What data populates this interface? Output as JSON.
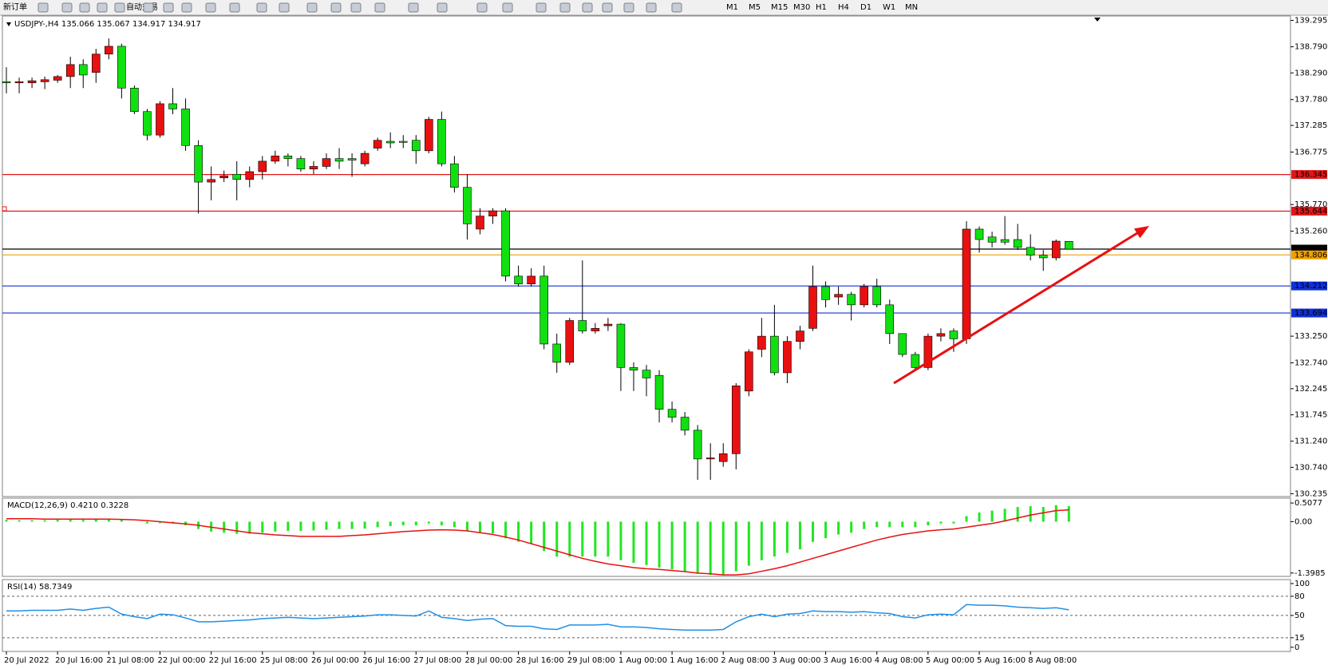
{
  "toolbar": {
    "new_order": "新订单",
    "auto_trading": "自动交易",
    "periods": [
      "M1",
      "M5",
      "M15",
      "M30",
      "H1",
      "H4",
      "D1",
      "W1",
      "MN"
    ]
  },
  "chart_data": [
    {
      "type": "candlestick",
      "title": "USDJPY-,H4 135.066 135.067 134.917 134.917",
      "x": [
        "20 Jul 2022",
        null,
        null,
        null,
        "20 Jul 16:00",
        null,
        null,
        null,
        "21 Jul 08:00",
        null,
        null,
        null,
        "22 Jul 00:00",
        null,
        null,
        null,
        "22 Jul 16:00",
        null,
        null,
        null,
        "25 Jul 08:00",
        null,
        null,
        null,
        "26 Jul 00:00",
        null,
        null,
        null,
        "26 Jul 16:00",
        null,
        null,
        null,
        "27 Jul 08:00",
        null,
        null,
        null,
        "28 Jul 00:00",
        null,
        null,
        null,
        "28 Jul 16:00",
        null,
        null,
        null,
        "29 Jul 08:00",
        null,
        null,
        null,
        "1 Aug 00:00",
        null,
        null,
        null,
        "1 Aug 16:00",
        null,
        null,
        null,
        "2 Aug 08:00",
        null,
        null,
        null,
        "3 Aug 00:00",
        null,
        null,
        null,
        "3 Aug 16:00",
        null,
        null,
        null,
        "4 Aug 08:00",
        null,
        null,
        null,
        "5 Aug 00:00",
        null,
        null,
        null,
        "5 Aug 16:00",
        null,
        null,
        null,
        "8 Aug 08:00",
        null,
        null,
        null
      ],
      "open": [
        138.12,
        138.1,
        138.1,
        138.12,
        138.15,
        138.22,
        138.45,
        138.3,
        138.65,
        138.8,
        138.0,
        137.55,
        137.1,
        137.7,
        137.6,
        136.9,
        136.2,
        136.28,
        136.35,
        136.25,
        136.4,
        136.6,
        136.7,
        136.65,
        136.45,
        136.5,
        136.65,
        136.65,
        136.55,
        136.85,
        136.98,
        136.98,
        137.0,
        136.8,
        137.4,
        136.55,
        136.1,
        135.3,
        135.55,
        135.65,
        134.4,
        134.25,
        134.4,
        133.1,
        132.75,
        133.55,
        133.35,
        133.45,
        133.48,
        132.65,
        132.6,
        132.5,
        131.85,
        131.7,
        131.45,
        130.9,
        130.85,
        131.0,
        132.2,
        133.0,
        133.25,
        132.55,
        133.15,
        133.4,
        134.2,
        134.0,
        134.05,
        133.85,
        134.2,
        133.85,
        133.3,
        132.9,
        132.65,
        133.25,
        133.35,
        133.2,
        135.3,
        135.15,
        135.1,
        135.1,
        134.95,
        134.8,
        134.75,
        135.066
      ],
      "high": [
        138.4,
        138.2,
        138.2,
        138.22,
        138.25,
        138.6,
        138.55,
        138.75,
        138.95,
        138.85,
        138.05,
        137.6,
        137.75,
        138.0,
        137.8,
        137.0,
        136.5,
        136.42,
        136.6,
        136.5,
        136.7,
        136.8,
        136.75,
        136.7,
        136.6,
        136.75,
        136.85,
        136.75,
        136.8,
        137.05,
        137.15,
        137.1,
        137.1,
        137.45,
        137.55,
        136.7,
        136.35,
        135.7,
        135.7,
        135.7,
        134.6,
        134.55,
        134.6,
        133.3,
        133.6,
        134.7,
        133.5,
        133.6,
        133.5,
        132.75,
        132.7,
        132.6,
        132.0,
        131.8,
        131.55,
        131.2,
        131.2,
        132.35,
        133.0,
        133.6,
        133.85,
        133.25,
        133.45,
        134.6,
        134.3,
        134.2,
        134.1,
        134.25,
        134.35,
        133.95,
        133.3,
        132.95,
        133.3,
        133.4,
        133.4,
        135.45,
        135.35,
        135.25,
        135.55,
        135.4,
        135.2,
        134.9,
        135.1,
        135.067
      ],
      "low": [
        137.9,
        137.9,
        138.0,
        137.98,
        138.1,
        138.0,
        138.0,
        138.1,
        138.55,
        137.8,
        137.5,
        137.0,
        137.05,
        137.5,
        136.8,
        135.6,
        135.85,
        136.2,
        135.85,
        136.1,
        136.25,
        136.55,
        136.5,
        136.4,
        136.35,
        136.45,
        136.45,
        136.3,
        136.5,
        136.8,
        136.85,
        136.85,
        136.55,
        136.75,
        136.5,
        136.0,
        135.1,
        135.2,
        135.4,
        134.3,
        134.2,
        134.2,
        133.0,
        132.55,
        132.7,
        133.3,
        133.3,
        133.35,
        132.2,
        132.2,
        132.1,
        131.6,
        131.6,
        131.35,
        130.5,
        130.5,
        130.75,
        130.7,
        132.1,
        132.85,
        132.5,
        132.35,
        133.0,
        133.35,
        133.8,
        133.85,
        133.55,
        133.8,
        133.8,
        133.1,
        132.85,
        132.6,
        132.6,
        133.15,
        132.95,
        133.1,
        134.85,
        134.95,
        135.0,
        134.9,
        134.7,
        134.5,
        134.7,
        134.917
      ],
      "close": [
        138.1,
        138.12,
        138.14,
        138.16,
        138.22,
        138.45,
        138.25,
        138.65,
        138.8,
        138.0,
        137.55,
        137.1,
        137.7,
        137.6,
        136.9,
        136.2,
        136.25,
        136.32,
        136.25,
        136.4,
        136.6,
        136.7,
        136.65,
        136.45,
        136.5,
        136.65,
        136.6,
        136.62,
        136.75,
        137.0,
        136.95,
        136.96,
        136.8,
        137.4,
        136.55,
        136.1,
        135.4,
        135.55,
        135.65,
        134.4,
        134.25,
        134.4,
        133.1,
        132.75,
        133.55,
        133.35,
        133.4,
        133.48,
        132.65,
        132.6,
        132.45,
        131.85,
        131.7,
        131.45,
        130.9,
        130.92,
        131.0,
        132.3,
        132.95,
        133.25,
        132.55,
        133.15,
        133.35,
        134.2,
        133.95,
        134.05,
        133.85,
        134.2,
        133.85,
        133.3,
        132.9,
        132.65,
        133.25,
        133.3,
        133.2,
        135.3,
        135.1,
        135.05,
        135.05,
        134.95,
        134.8,
        134.75,
        135.07,
        134.917
      ],
      "up_color": "#e81010",
      "down_color": "#10e010",
      "ylim": [
        130.18,
        139.38
      ],
      "yticks": [
        139.295,
        {
          "value": 138.79,
          "label": "138.790"
        },
        {
          "value": 138.29,
          "label": "138.290"
        },
        {
          "value": 137.78,
          "label": "137.780"
        },
        137.285,
        136.775,
        {
          "value": 135.77,
          "label": "135.770"
        },
        {
          "value": 135.26,
          "label": "135.260"
        },
        {
          "value": 133.25,
          "label": "133.250"
        },
        {
          "value": 132.74,
          "label": "132.740"
        },
        132.245,
        131.745,
        {
          "value": 131.24,
          "label": "131.240"
        },
        {
          "value": 130.74,
          "label": "130.740"
        },
        130.235
      ],
      "levels": [
        {
          "value": 136.345,
          "color": "#e01818"
        },
        {
          "value": 135.644,
          "color": "#e01818"
        },
        {
          "value": 134.917,
          "color": "#000000"
        },
        {
          "value": 134.806,
          "color": "#f0a000"
        },
        {
          "value": 134.212,
          "color": "#1030d8"
        },
        {
          "value": 133.694,
          "color": "#1030d8"
        }
      ]
    },
    {
      "type": "macd",
      "title": "MACD(12,26,9) 0.4210 0.3228",
      "values": [
        0.05,
        0.04,
        0.04,
        0.04,
        0.05,
        0.06,
        0.05,
        0.06,
        0.07,
        0.05,
        0.0,
        -0.05,
        -0.04,
        -0.05,
        -0.1,
        -0.2,
        -0.27,
        -0.3,
        -0.33,
        -0.33,
        -0.3,
        -0.27,
        -0.25,
        -0.25,
        -0.24,
        -0.22,
        -0.2,
        -0.2,
        -0.19,
        -0.15,
        -0.12,
        -0.1,
        -0.1,
        -0.05,
        -0.1,
        -0.15,
        -0.25,
        -0.3,
        -0.32,
        -0.45,
        -0.55,
        -0.6,
        -0.8,
        -0.95,
        -0.95,
        -0.95,
        -0.95,
        -0.95,
        -1.05,
        -1.12,
        -1.18,
        -1.25,
        -1.3,
        -1.35,
        -1.42,
        -1.45,
        -1.45,
        -1.35,
        -1.2,
        -1.05,
        -0.95,
        -0.85,
        -0.75,
        -0.55,
        -0.45,
        -0.35,
        -0.3,
        -0.2,
        -0.15,
        -0.15,
        -0.15,
        -0.15,
        -0.1,
        -0.05,
        -0.05,
        0.15,
        0.25,
        0.3,
        0.35,
        0.4,
        0.42,
        0.4,
        0.45,
        0.421
      ],
      "color": "#22e622",
      "signal": [
        0.08,
        0.08,
        0.08,
        0.07,
        0.07,
        0.07,
        0.07,
        0.07,
        0.07,
        0.06,
        0.05,
        0.03,
        0.0,
        -0.03,
        -0.06,
        -0.1,
        -0.15,
        -0.2,
        -0.25,
        -0.3,
        -0.33,
        -0.36,
        -0.38,
        -0.4,
        -0.4,
        -0.4,
        -0.4,
        -0.38,
        -0.36,
        -0.33,
        -0.3,
        -0.27,
        -0.25,
        -0.23,
        -0.22,
        -0.23,
        -0.25,
        -0.3,
        -0.35,
        -0.42,
        -0.5,
        -0.6,
        -0.7,
        -0.8,
        -0.9,
        -1.0,
        -1.08,
        -1.15,
        -1.2,
        -1.25,
        -1.28,
        -1.3,
        -1.33,
        -1.36,
        -1.4,
        -1.42,
        -1.45,
        -1.45,
        -1.42,
        -1.35,
        -1.28,
        -1.2,
        -1.1,
        -1.0,
        -0.9,
        -0.8,
        -0.7,
        -0.6,
        -0.5,
        -0.42,
        -0.35,
        -0.3,
        -0.25,
        -0.22,
        -0.2,
        -0.15,
        -0.1,
        -0.05,
        0.02,
        0.1,
        0.18,
        0.24,
        0.3,
        0.3228
      ],
      "signal_color": "#e81010",
      "ylim": [
        -1.49,
        0.64
      ],
      "yticks": [
        0.5077,
        {
          "value": 0,
          "label": "0.00"
        },
        -1.3985
      ]
    },
    {
      "type": "line",
      "title": "RSI(14) 58.7349",
      "values": [
        57,
        57,
        58,
        58,
        58,
        60,
        58,
        61,
        63,
        52,
        48,
        45,
        52,
        51,
        46,
        40,
        40,
        41,
        42,
        43,
        45,
        46,
        47,
        46,
        45,
        46,
        47,
        48,
        49,
        51,
        51,
        50,
        49,
        57,
        47,
        45,
        42,
        44,
        45,
        34,
        33,
        33,
        29,
        28,
        35,
        35,
        35,
        36,
        32,
        32,
        31,
        29,
        28,
        27,
        27,
        27,
        28,
        40,
        48,
        52,
        48,
        52,
        53,
        57,
        56,
        56,
        55,
        56,
        54,
        53,
        48,
        46,
        51,
        52,
        51,
        67,
        66,
        66,
        65,
        63,
        62,
        61,
        62,
        58.7349
      ],
      "color": "#1e90e8",
      "ylim": [
        -6.5,
        106.2
      ],
      "yticks": [
        100,
        80,
        50,
        15,
        0
      ],
      "levels": [
        80,
        50,
        15
      ]
    }
  ]
}
